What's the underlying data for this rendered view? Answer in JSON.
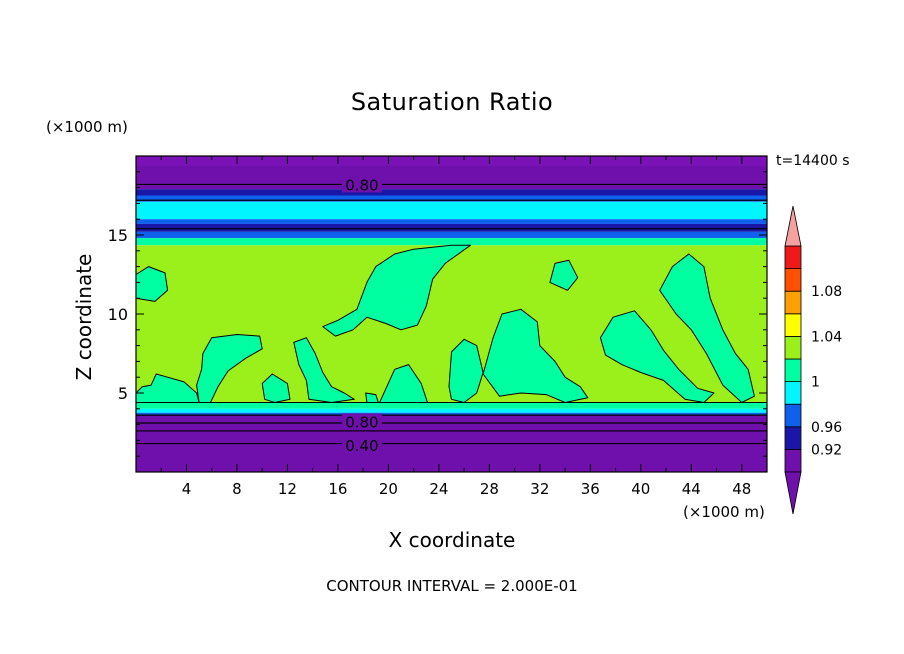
{
  "chart_data": {
    "type": "contour",
    "title": "Saturation Ratio",
    "xlabel": "X coordinate",
    "ylabel": "Z coordinate",
    "x_unit": "(×1000 m)",
    "y_unit": "(×1000 m)",
    "time_label": "t=14400 s",
    "footer": "CONTOUR INTERVAL = 2.000E-01",
    "xlim": [
      0,
      50
    ],
    "ylim": [
      0,
      20
    ],
    "x_ticks": [
      4,
      8,
      12,
      16,
      20,
      24,
      28,
      32,
      36,
      40,
      44,
      48
    ],
    "y_ticks": [
      5,
      10,
      15
    ],
    "contour_labels": [
      {
        "text": "0.80",
        "x": 17.9,
        "z": 18.2
      },
      {
        "text": "0.80",
        "x": 17.9,
        "z": 3.2
      },
      {
        "text": "0.40",
        "x": 17.9,
        "z": 1.7
      }
    ],
    "layers": [
      {
        "z0": 19.4,
        "z1": 20.0,
        "color": "#7b12b8"
      },
      {
        "z0": 17.9,
        "z1": 19.4,
        "color": "#6f10ad"
      },
      {
        "z0": 17.5,
        "z1": 17.9,
        "color": "#1a17a8"
      },
      {
        "z0": 17.1,
        "z1": 17.5,
        "color": "#1060ee"
      },
      {
        "z0": 16.0,
        "z1": 17.1,
        "color": "#00f5fe"
      },
      {
        "z0": 15.7,
        "z1": 16.0,
        "color": "#1060ee"
      },
      {
        "z0": 15.2,
        "z1": 15.7,
        "color": "#1a17a8"
      },
      {
        "z0": 14.8,
        "z1": 15.2,
        "color": "#1060ee"
      },
      {
        "z0": 14.35,
        "z1": 14.8,
        "color": "#00ffa0"
      },
      {
        "z0": 4.4,
        "z1": 14.35,
        "color": "#9bef1b"
      },
      {
        "z0": 4.0,
        "z1": 4.4,
        "color": "#00ffa0"
      },
      {
        "z0": 3.75,
        "z1": 4.0,
        "color": "#00f5fe"
      },
      {
        "z0": 3.6,
        "z1": 3.75,
        "color": "#1060ee"
      },
      {
        "z0": 0.0,
        "z1": 3.6,
        "color": "#6f10ad"
      }
    ],
    "contour_lines_z": [
      18.2,
      17.2,
      15.4,
      3.6,
      3.1,
      2.6,
      1.8
    ],
    "blobs": [
      [
        [
          0.0,
          12.5
        ],
        [
          1.0,
          13.0
        ],
        [
          2.3,
          12.6
        ],
        [
          2.5,
          11.5
        ],
        [
          1.5,
          10.8
        ],
        [
          0.0,
          11.0
        ]
      ],
      [
        [
          14.8,
          9.2
        ],
        [
          16.0,
          9.6
        ],
        [
          17.5,
          10.3
        ],
        [
          18.3,
          12.0
        ],
        [
          19.0,
          13.0
        ],
        [
          20.5,
          13.8
        ],
        [
          22.0,
          14.1
        ],
        [
          25.0,
          14.35
        ],
        [
          26.5,
          14.35
        ],
        [
          24.5,
          13.2
        ],
        [
          23.5,
          12.2
        ],
        [
          23.0,
          10.5
        ],
        [
          22.3,
          9.3
        ],
        [
          21.0,
          9.0
        ],
        [
          19.8,
          9.4
        ],
        [
          18.3,
          9.8
        ],
        [
          17.2,
          9.0
        ],
        [
          15.8,
          8.6
        ]
      ],
      [
        [
          32.8,
          12.0
        ],
        [
          33.2,
          13.2
        ],
        [
          34.3,
          13.4
        ],
        [
          35.0,
          12.3
        ],
        [
          34.2,
          11.5
        ]
      ],
      [
        [
          41.5,
          11.5
        ],
        [
          42.5,
          13.0
        ],
        [
          43.8,
          13.8
        ],
        [
          45.0,
          13.0
        ],
        [
          45.5,
          11.0
        ],
        [
          46.5,
          9.0
        ],
        [
          47.5,
          7.5
        ],
        [
          48.5,
          6.5
        ],
        [
          49.0,
          4.8
        ],
        [
          48.0,
          4.4
        ],
        [
          46.5,
          5.5
        ],
        [
          45.2,
          7.5
        ],
        [
          44.0,
          9.0
        ],
        [
          42.8,
          10.0
        ]
      ],
      [
        [
          36.8,
          8.5
        ],
        [
          37.8,
          9.8
        ],
        [
          39.5,
          10.2
        ],
        [
          40.8,
          9.0
        ],
        [
          41.8,
          7.7
        ],
        [
          43.0,
          6.5
        ],
        [
          44.5,
          5.3
        ],
        [
          45.8,
          5.0
        ],
        [
          45.0,
          4.4
        ],
        [
          43.5,
          4.6
        ],
        [
          41.8,
          5.8
        ],
        [
          40.0,
          6.3
        ],
        [
          38.5,
          6.8
        ],
        [
          37.2,
          7.4
        ]
      ],
      [
        [
          27.5,
          6.2
        ],
        [
          28.3,
          8.5
        ],
        [
          29.0,
          10.0
        ],
        [
          30.5,
          10.3
        ],
        [
          31.8,
          9.5
        ],
        [
          32.0,
          8.0
        ],
        [
          33.2,
          7.0
        ],
        [
          34.0,
          6.0
        ],
        [
          35.2,
          5.4
        ],
        [
          35.8,
          4.7
        ],
        [
          34.0,
          4.4
        ],
        [
          32.5,
          4.9
        ],
        [
          30.5,
          5.0
        ],
        [
          28.8,
          4.8
        ]
      ],
      [
        [
          5.3,
          7.5
        ],
        [
          6.0,
          8.5
        ],
        [
          8.0,
          8.7
        ],
        [
          9.8,
          8.6
        ],
        [
          10.0,
          7.8
        ],
        [
          8.7,
          7.2
        ],
        [
          7.3,
          6.4
        ],
        [
          6.5,
          5.4
        ],
        [
          5.9,
          4.4
        ],
        [
          5.0,
          4.4
        ],
        [
          4.8,
          5.5
        ],
        [
          5.2,
          6.5
        ]
      ],
      [
        [
          0.0,
          5.0
        ],
        [
          0.5,
          5.4
        ],
        [
          1.2,
          5.5
        ],
        [
          1.6,
          6.2
        ],
        [
          2.5,
          6.0
        ],
        [
          3.8,
          5.7
        ],
        [
          4.8,
          5.0
        ],
        [
          5.0,
          4.4
        ],
        [
          0.0,
          4.4
        ]
      ],
      [
        [
          10.0,
          5.6
        ],
        [
          10.8,
          6.2
        ],
        [
          12.0,
          5.6
        ],
        [
          12.2,
          4.6
        ],
        [
          11.0,
          4.4
        ],
        [
          10.2,
          4.6
        ]
      ],
      [
        [
          12.5,
          8.2
        ],
        [
          13.5,
          8.5
        ],
        [
          14.2,
          7.5
        ],
        [
          14.8,
          6.3
        ],
        [
          15.5,
          5.4
        ],
        [
          16.5,
          5.0
        ],
        [
          17.3,
          4.6
        ],
        [
          15.5,
          4.4
        ],
        [
          13.7,
          4.6
        ],
        [
          13.5,
          5.8
        ],
        [
          12.9,
          6.8
        ]
      ],
      [
        [
          19.3,
          4.4
        ],
        [
          20.5,
          6.5
        ],
        [
          21.6,
          6.8
        ],
        [
          22.6,
          5.6
        ],
        [
          23.1,
          4.4
        ]
      ],
      [
        [
          24.8,
          5.4
        ],
        [
          25.0,
          7.6
        ],
        [
          26.0,
          8.4
        ],
        [
          27.0,
          8.0
        ],
        [
          27.5,
          6.3
        ],
        [
          27.0,
          5.0
        ],
        [
          26.0,
          4.4
        ],
        [
          25.0,
          4.6
        ]
      ],
      [
        [
          18.2,
          5.0
        ],
        [
          19.0,
          4.9
        ],
        [
          19.2,
          4.4
        ],
        [
          18.3,
          4.4
        ]
      ]
    ],
    "colorbar": {
      "labels": [
        "1.08",
        "1.04",
        "1",
        "0.96",
        "0.92"
      ],
      "colors": [
        "#6f10ad",
        "#1a17a8",
        "#1060ee",
        "#00f5fe",
        "#00ffa0",
        "#9bef1b",
        "#ffff00",
        "#ffa000",
        "#ff5000",
        "#ee1a1a"
      ],
      "arrow_top_color": "#f6a0a0",
      "arrow_bottom_color": "#6f10ad"
    },
    "colors": {
      "line": "#000000"
    }
  }
}
